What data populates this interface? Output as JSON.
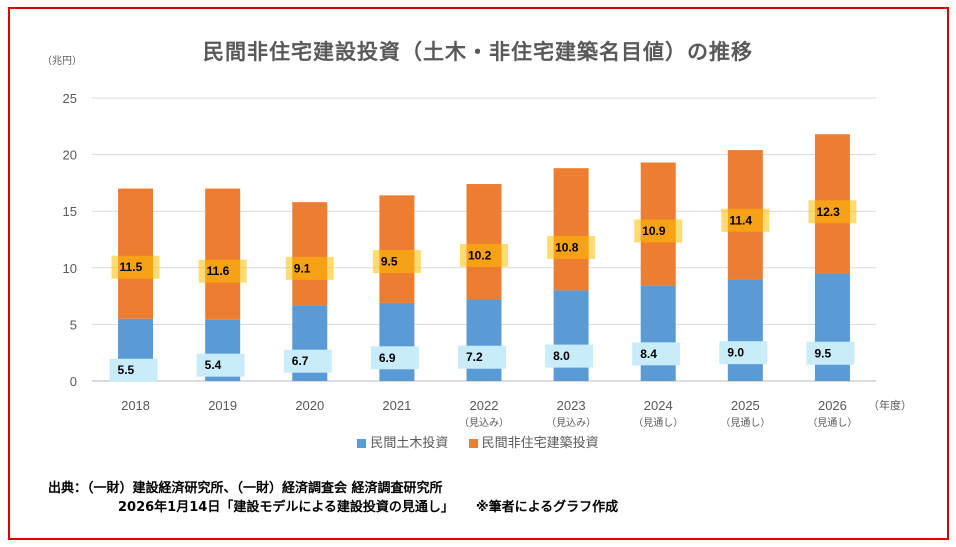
{
  "chart_data": {
    "type": "bar",
    "stacked": true,
    "title": "民間非住宅建設投資（土木・非住宅建築名目値）の推移",
    "ylabel": "（兆円）",
    "xlabel": "（年度）",
    "ylim": [
      0,
      25
    ],
    "yticks": [
      0,
      5,
      10,
      15,
      20,
      25
    ],
    "grid": true,
    "legend_position": "bottom",
    "categories": [
      "2018",
      "2019",
      "2020",
      "2021",
      "2022",
      "2023",
      "2024",
      "2025",
      "2026"
    ],
    "category_notes": [
      "",
      "",
      "",
      "",
      "（見込み）",
      "（見込み）",
      "（見通し）",
      "（見通し）",
      "（見通し）"
    ],
    "series": [
      {
        "name": "民間土木投資",
        "color": "#5b9bd5",
        "label_bg": "#c9ecfb",
        "values": [
          5.5,
          5.4,
          6.7,
          6.9,
          7.2,
          8.0,
          8.4,
          9.0,
          9.5
        ],
        "labels": [
          "5.5",
          "5.4",
          "6.7",
          "6.9",
          "7.2",
          "8.0",
          "8.4",
          "9.0",
          "9.5"
        ]
      },
      {
        "name": "民間非住宅建築投資",
        "color": "#ed7d31",
        "label_bg": "#ffc000",
        "values": [
          11.5,
          11.6,
          9.1,
          9.5,
          10.2,
          10.8,
          10.9,
          11.4,
          12.3
        ],
        "labels": [
          "11.5",
          "11.6",
          "9.1",
          "9.5",
          "10.2",
          "10.8",
          "10.9",
          "11.4",
          "12.3"
        ]
      }
    ]
  },
  "source": {
    "line1": "出典：（一財）建設経済研究所、（一財）経済調査会 経済調査研究所",
    "line2": "2026年1月14日「建設モデルによる建設投資の見通し」",
    "note": "※筆者によるグラフ作成"
  }
}
